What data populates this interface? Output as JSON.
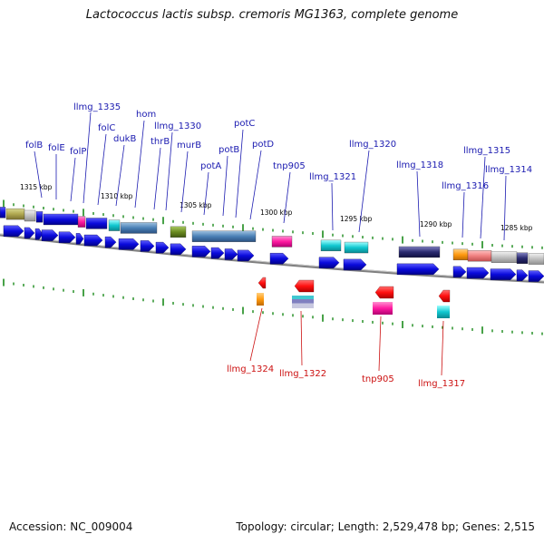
{
  "title": "Lactococcus lactis subsp. cremoris MG1363, complete genome",
  "footer": {
    "accession": "Accession: NC_009004",
    "topology": "Topology: circular; Length: 2,529,478 bp; Genes: 2,515"
  },
  "colors": {
    "gene_blue": "#0a0adc",
    "label_plus": "#1a1ab0",
    "label_minus": "#cc1010",
    "backbone": "#808080",
    "tick": "#1a8a1a"
  },
  "kbp_labels": [
    "1315 kbp",
    "1310 kbp",
    "1305 kbp",
    "1300 kbp",
    "1295 kbp",
    "1290 kbp",
    "1285 kbp"
  ],
  "plus_labels": [
    "folB",
    "folE",
    "folP",
    "llmg_1335",
    "folC",
    "dukB",
    "hom",
    "thrB",
    "llmg_1330",
    "murB",
    "potA",
    "potB",
    "potC",
    "potD",
    "tnp905",
    "llmg_1321",
    "llmg_1320",
    "llmg_1318",
    "llmg_1316",
    "llmg_1315",
    "llmg_1314"
  ],
  "minus_labels": [
    "llmg_1324",
    "llmg_1322",
    "tnp905",
    "llmg_1317"
  ]
}
